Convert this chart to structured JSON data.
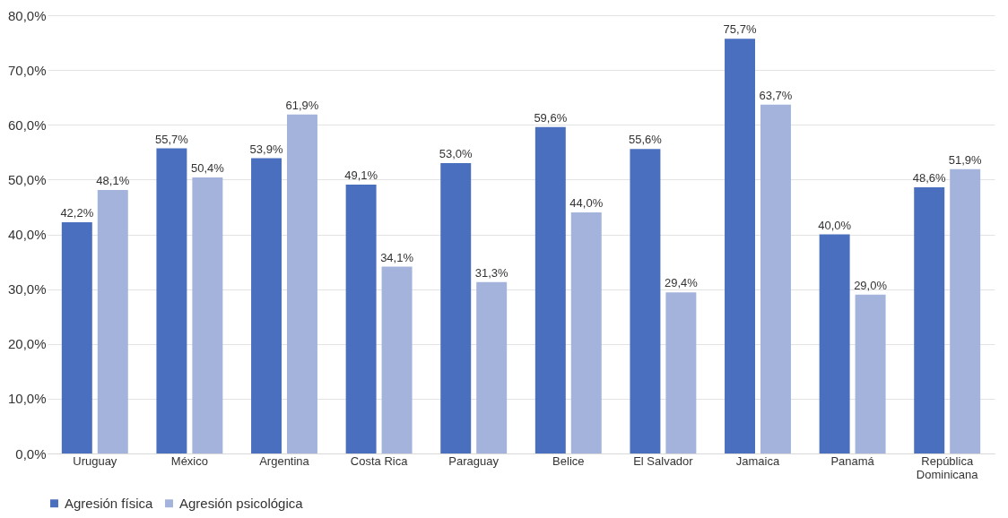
{
  "chart_data": {
    "type": "bar",
    "categories": [
      "Uruguay",
      "México",
      "Argentina",
      "Costa Rica",
      "Paraguay",
      "Belice",
      "El Salvador",
      "Jamaica",
      "Panamá",
      "República Dominicana"
    ],
    "series": [
      {
        "name": "Agresión física",
        "color": "#4a6fbe",
        "values": [
          42.2,
          55.7,
          53.9,
          49.1,
          53.0,
          59.6,
          55.6,
          75.7,
          40.0,
          48.6
        ],
        "value_labels": [
          "42,2%",
          "55,7%",
          "53,9%",
          "49,1%",
          "53,0%",
          "59,6%",
          "55,6%",
          "75,7%",
          "40,0%",
          "48,6%"
        ]
      },
      {
        "name": "Agresión psicológica",
        "color": "#a3b3dc",
        "values": [
          48.1,
          50.4,
          61.9,
          34.1,
          31.3,
          44.0,
          29.4,
          63.7,
          29.0,
          51.9
        ],
        "value_labels": [
          "48,1%",
          "50,4%",
          "61,9%",
          "34,1%",
          "31,3%",
          "44,0%",
          "29,4%",
          "63,7%",
          "29,0%",
          "51,9%"
        ]
      }
    ],
    "ylim": [
      0,
      80
    ],
    "yticks": [
      {
        "value": 0,
        "label": "0,0%"
      },
      {
        "value": 10,
        "label": "10,0%"
      },
      {
        "value": 20,
        "label": "20,0%"
      },
      {
        "value": 30,
        "label": "30,0%"
      },
      {
        "value": 40,
        "label": "40,0%"
      },
      {
        "value": 50,
        "label": "50,0%"
      },
      {
        "value": 60,
        "label": "60,0%"
      },
      {
        "value": 70,
        "label": "70,0%"
      },
      {
        "value": 80,
        "label": "80,0%"
      }
    ],
    "grid": "y",
    "legend": "bottom"
  }
}
